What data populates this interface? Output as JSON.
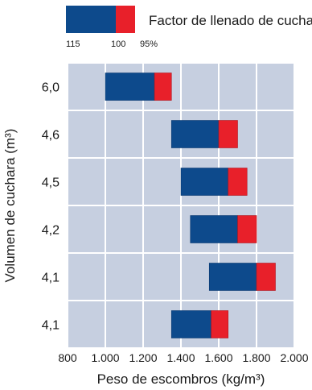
{
  "chart_data": {
    "type": "bar",
    "orientation": "horizontal",
    "stacked_range": true,
    "xlabel": "Peso de escombros (kg/m³)",
    "ylabel": "Volumen de cuchara (m³)",
    "xlim": [
      800,
      2000
    ],
    "x_ticks": [
      "800",
      "1.000",
      "1.200",
      "1.400",
      "1.600",
      "1.800",
      "2.000"
    ],
    "x_tick_values": [
      800,
      1000,
      1200,
      1400,
      1600,
      1800,
      2000
    ],
    "grid": true,
    "legend": {
      "placement": "top",
      "label": "Factor de llenado de cuchara",
      "sublabels": [
        "115",
        "100",
        "95%"
      ]
    },
    "series": [
      {
        "name": "100–115",
        "color": "#0d4a8c"
      },
      {
        "name": "95–100",
        "color": "#e8202a"
      }
    ],
    "categories": [
      "6,0",
      "4,6",
      "4,5",
      "4,2",
      "4,1",
      "4,1"
    ],
    "bars": [
      {
        "start": 1000,
        "mid": 1260,
        "end": 1350
      },
      {
        "start": 1350,
        "mid": 1600,
        "end": 1700
      },
      {
        "start": 1400,
        "mid": 1650,
        "end": 1750
      },
      {
        "start": 1450,
        "mid": 1700,
        "end": 1800
      },
      {
        "start": 1550,
        "mid": 1800,
        "end": 1900
      },
      {
        "start": 1350,
        "mid": 1560,
        "end": 1650
      }
    ]
  },
  "colors": {
    "plot_bg": "#c6cfe0",
    "grid": "#ffffff",
    "blue": "#0d4a8c",
    "red": "#e8202a"
  }
}
